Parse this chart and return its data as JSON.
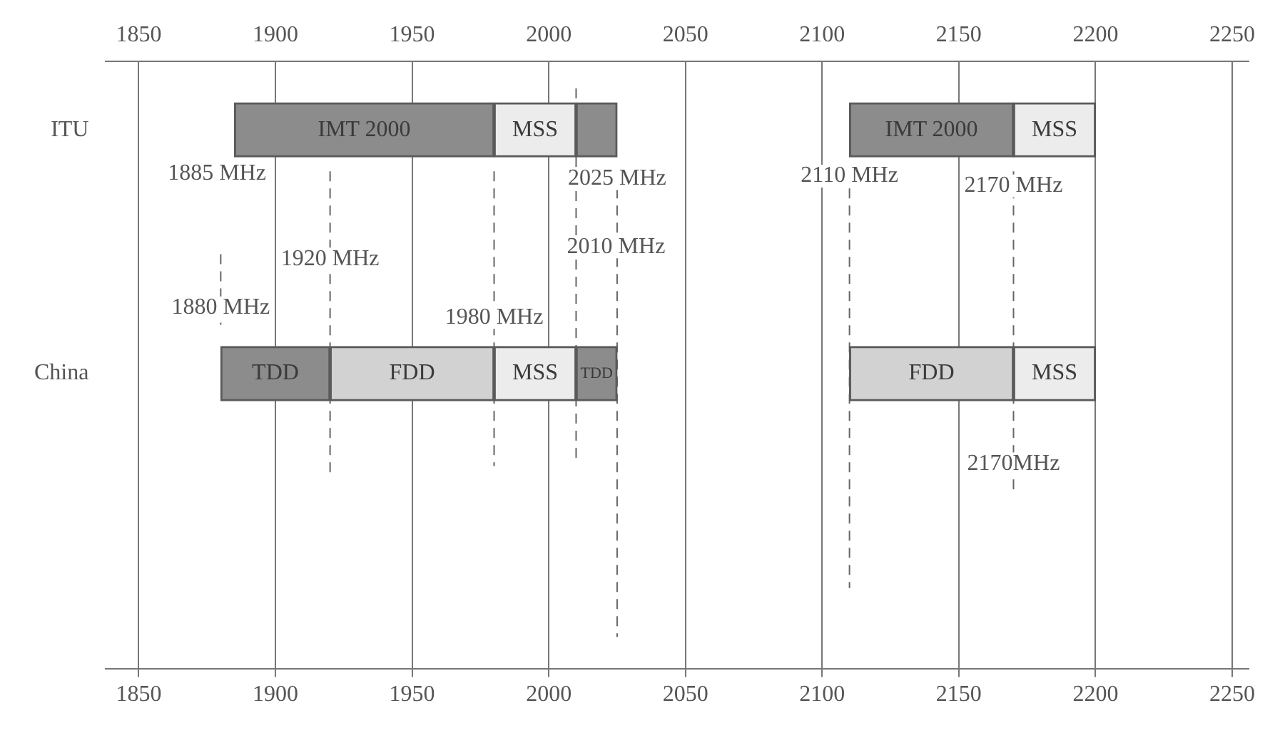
{
  "chart_data": {
    "type": "bar",
    "orientation": "horizontal",
    "categories": [
      "ITU",
      "China"
    ],
    "series": [
      {
        "values": [
          95,
          40
        ],
        "base": [
          1885,
          1880
        ],
        "colors": [
          "#8c8c8c",
          "#8c8c8c"
        ],
        "value_labels": [
          "IMT 2000",
          "TDD"
        ]
      },
      {
        "values": [
          30,
          60
        ],
        "base": [
          1980,
          1920
        ],
        "colors": [
          "#ececec",
          "#d2d2d2"
        ],
        "value_labels": [
          "MSS",
          "FDD"
        ]
      },
      {
        "values": [
          15,
          30
        ],
        "base": [
          2010,
          1980
        ],
        "colors": [
          "#8c8c8c",
          "#ececec"
        ],
        "value_labels": [
          null,
          "MSS"
        ]
      },
      {
        "values": [
          60,
          15
        ],
        "base": [
          2110,
          2010
        ],
        "colors": [
          "#8c8c8c",
          "#8c8c8c"
        ],
        "value_labels": [
          "IMT 2000",
          "TDD"
        ]
      },
      {
        "values": [
          30,
          60
        ],
        "base": [
          2170,
          2110
        ],
        "colors": [
          "#ececec",
          "#d2d2d2"
        ],
        "value_labels": [
          "MSS",
          "FDD"
        ]
      },
      {
        "values": [
          null,
          30
        ],
        "base": [
          null,
          2170
        ],
        "colors": [
          null,
          "#ececec"
        ],
        "value_labels": [
          null,
          "MSS"
        ]
      }
    ],
    "xlim": [
      1838,
      2256
    ],
    "xticks": [
      1850,
      1900,
      1950,
      2000,
      2050,
      2100,
      2150,
      2200,
      2250
    ],
    "x2lim": [
      1838,
      2256
    ],
    "x2ticks": [
      1850,
      1900,
      1950,
      2000,
      2050,
      2100,
      2150,
      2200,
      2250
    ],
    "grid": "x",
    "legend": false,
    "ref_lines": [
      {
        "axis": "x",
        "value": 1880,
        "label": "1880 MHz",
        "color": "#666666",
        "line_style": "dashed"
      },
      {
        "axis": "x",
        "value": 1920,
        "label": "1920 MHz",
        "color": "#666666",
        "line_style": "dashed"
      },
      {
        "axis": "x",
        "value": 1980,
        "label": "1980 MHz",
        "color": "#666666",
        "line_style": "dashed"
      },
      {
        "axis": "x",
        "value": 2010,
        "label": "2010 MHz",
        "color": "#666666",
        "line_style": "dashed"
      },
      {
        "axis": "x",
        "value": 2025,
        "label": "2025 MHz",
        "color": "#666666",
        "line_style": "dashed"
      },
      {
        "axis": "x",
        "value": 2110,
        "label": "2110 MHz",
        "color": "#666666",
        "line_style": "dashed"
      },
      {
        "axis": "x",
        "value": 2170,
        "label": "2170 MHz",
        "color": "#666666",
        "line_style": "dashed"
      }
    ],
    "annotations": [
      "1885 MHz",
      {
        "text": "2170MHz",
        "x": 2170
      }
    ]
  }
}
